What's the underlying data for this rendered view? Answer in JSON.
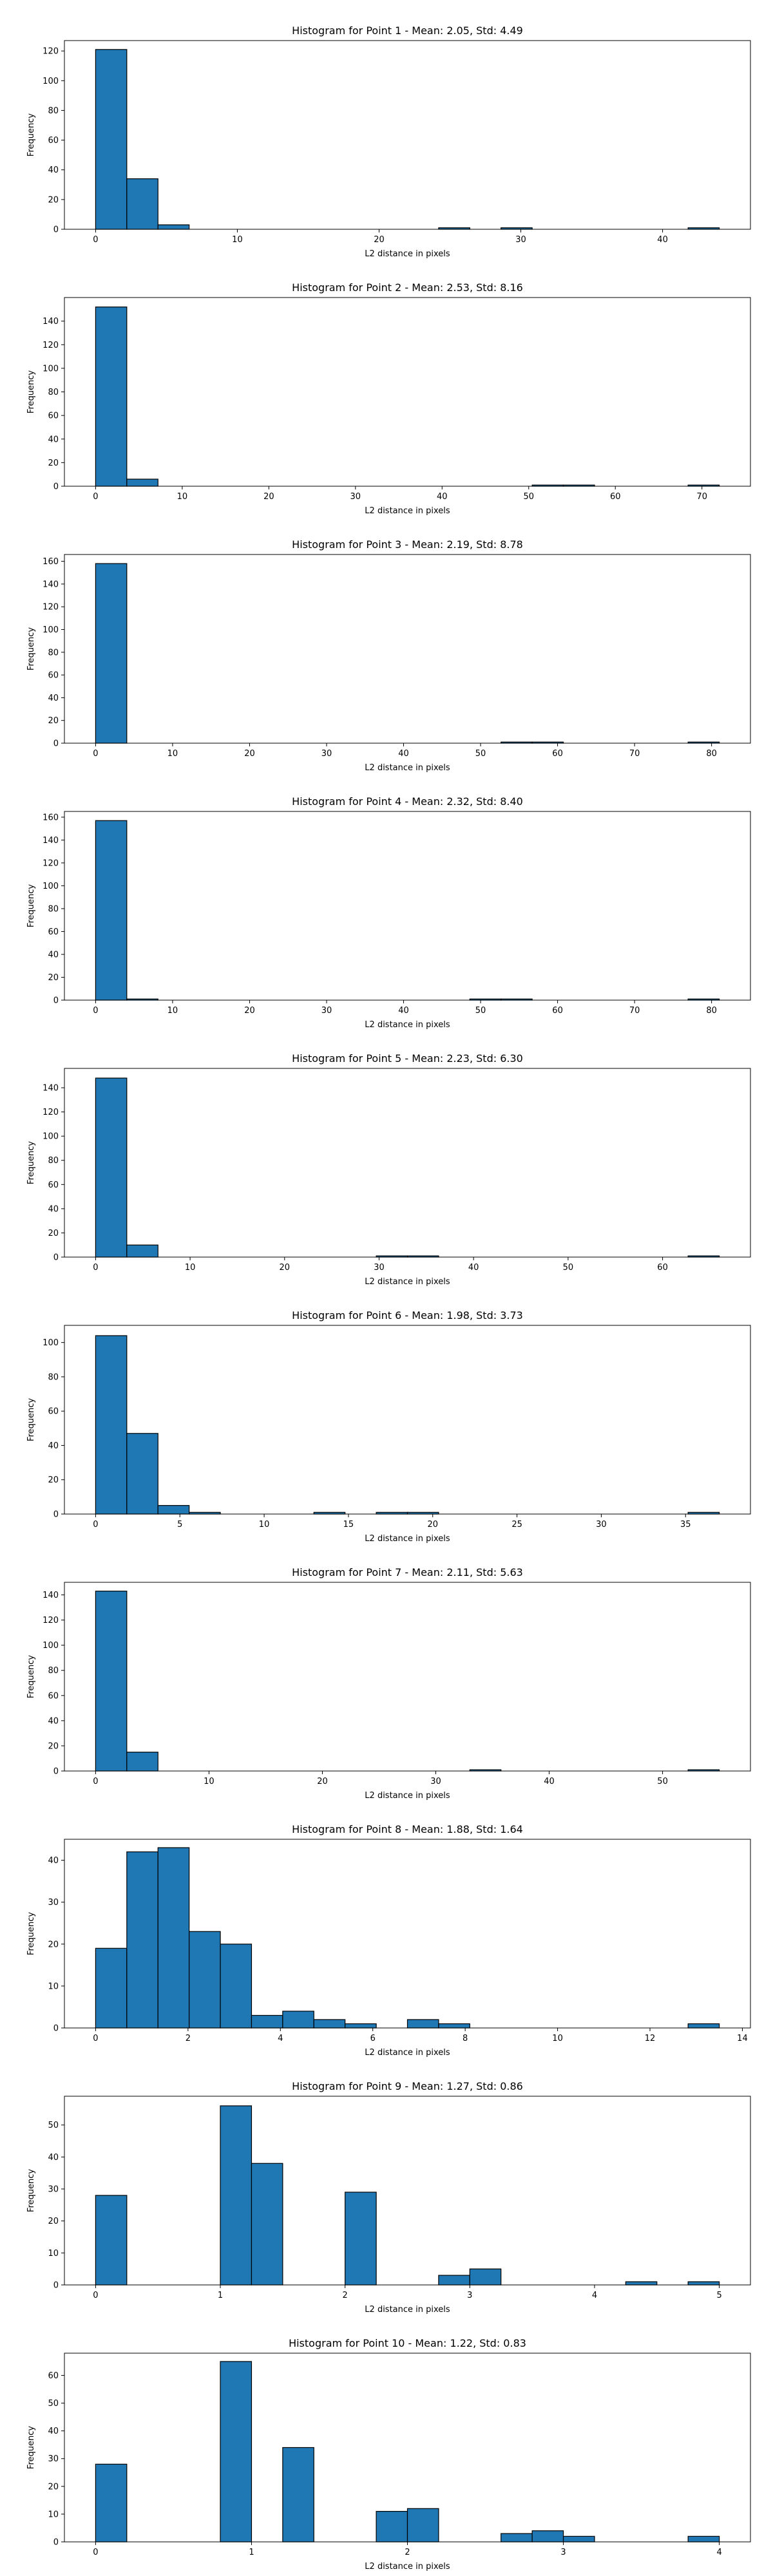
{
  "chart_data": [
    {
      "type": "bar",
      "title": "Histogram for Point 1 - Mean: 2.05, Std: 4.49",
      "xlabel": "L2 distance in pixels",
      "ylabel": "Frequency",
      "bin_start": 0,
      "bin_width": 2.2,
      "counts": [
        121,
        34,
        3,
        0,
        0,
        0,
        0,
        0,
        0,
        0,
        0,
        1,
        0,
        1,
        0,
        0,
        0,
        0,
        0,
        1
      ],
      "xlim": [
        -2.2,
        46.2
      ],
      "ylim": [
        0,
        127
      ],
      "xticks": [
        0,
        10,
        20,
        30,
        40
      ],
      "yticks": [
        0,
        20,
        40,
        60,
        80,
        100,
        120
      ]
    },
    {
      "type": "bar",
      "title": "Histogram for Point 2 - Mean: 2.53, Std: 8.16",
      "xlabel": "L2 distance in pixels",
      "ylabel": "Frequency",
      "bin_start": 0,
      "bin_width": 3.6,
      "counts": [
        152,
        6,
        0,
        0,
        0,
        0,
        0,
        0,
        0,
        0,
        0,
        0,
        0,
        0,
        1,
        1,
        0,
        0,
        0,
        1
      ],
      "xlim": [
        -3.6,
        75.6
      ],
      "ylim": [
        0,
        160
      ],
      "xticks": [
        0,
        10,
        20,
        30,
        40,
        50,
        60,
        70
      ],
      "yticks": [
        0,
        20,
        40,
        60,
        80,
        100,
        120,
        140
      ]
    },
    {
      "type": "bar",
      "title": "Histogram for Point 3 - Mean: 2.19, Std: 8.78",
      "xlabel": "L2 distance in pixels",
      "ylabel": "Frequency",
      "bin_start": 0,
      "bin_width": 4.05,
      "counts": [
        158,
        0,
        0,
        0,
        0,
        0,
        0,
        0,
        0,
        0,
        0,
        0,
        0,
        1,
        1,
        0,
        0,
        0,
        0,
        1
      ],
      "xlim": [
        -4.05,
        85.05
      ],
      "ylim": [
        0,
        166
      ],
      "xticks": [
        0,
        10,
        20,
        30,
        40,
        50,
        60,
        70,
        80
      ],
      "yticks": [
        0,
        20,
        40,
        60,
        80,
        100,
        120,
        140,
        160
      ]
    },
    {
      "type": "bar",
      "title": "Histogram for Point 4 - Mean: 2.32, Std: 8.40",
      "xlabel": "L2 distance in pixels",
      "ylabel": "Frequency",
      "bin_start": 0,
      "bin_width": 4.05,
      "counts": [
        157,
        1,
        0,
        0,
        0,
        0,
        0,
        0,
        0,
        0,
        0,
        0,
        1,
        1,
        0,
        0,
        0,
        0,
        0,
        1
      ],
      "xlim": [
        -4.05,
        85.05
      ],
      "ylim": [
        0,
        165
      ],
      "xticks": [
        0,
        10,
        20,
        30,
        40,
        50,
        60,
        70,
        80
      ],
      "yticks": [
        0,
        20,
        40,
        60,
        80,
        100,
        120,
        140,
        160
      ]
    },
    {
      "type": "bar",
      "title": "Histogram for Point 5 - Mean: 2.23, Std: 6.30",
      "xlabel": "L2 distance in pixels",
      "ylabel": "Frequency",
      "bin_start": 0,
      "bin_width": 3.3,
      "counts": [
        148,
        10,
        0,
        0,
        0,
        0,
        0,
        0,
        0,
        1,
        1,
        0,
        0,
        0,
        0,
        0,
        0,
        0,
        0,
        1
      ],
      "xlim": [
        -3.3,
        69.3
      ],
      "ylim": [
        0,
        156
      ],
      "xticks": [
        0,
        10,
        20,
        30,
        40,
        50,
        60
      ],
      "yticks": [
        0,
        20,
        40,
        60,
        80,
        100,
        120,
        140
      ]
    },
    {
      "type": "bar",
      "title": "Histogram for Point 6 - Mean: 1.98, Std: 3.73",
      "xlabel": "L2 distance in pixels",
      "ylabel": "Frequency",
      "bin_start": 0,
      "bin_width": 1.85,
      "counts": [
        104,
        47,
        5,
        1,
        0,
        0,
        0,
        1,
        0,
        1,
        1,
        0,
        0,
        0,
        0,
        0,
        0,
        0,
        0,
        1
      ],
      "xlim": [
        -1.85,
        38.85
      ],
      "ylim": [
        0,
        110
      ],
      "xticks": [
        0,
        5,
        10,
        15,
        20,
        25,
        30,
        35
      ],
      "yticks": [
        0,
        20,
        40,
        60,
        80,
        100
      ]
    },
    {
      "type": "bar",
      "title": "Histogram for Point 7 - Mean: 2.11, Std: 5.63",
      "xlabel": "L2 distance in pixels",
      "ylabel": "Frequency",
      "bin_start": 0,
      "bin_width": 2.75,
      "counts": [
        143,
        15,
        0,
        0,
        0,
        0,
        0,
        0,
        0,
        0,
        0,
        0,
        1,
        0,
        0,
        0,
        0,
        0,
        0,
        1
      ],
      "xlim": [
        -2.75,
        57.75
      ],
      "ylim": [
        0,
        150
      ],
      "xticks": [
        0,
        10,
        20,
        30,
        40,
        50
      ],
      "yticks": [
        0,
        20,
        40,
        60,
        80,
        100,
        120,
        140
      ]
    },
    {
      "type": "bar",
      "title": "Histogram for Point 8 - Mean: 1.88, Std: 1.64",
      "xlabel": "L2 distance in pixels",
      "ylabel": "Frequency",
      "bin_start": 0,
      "bin_width": 0.675,
      "counts": [
        19,
        42,
        43,
        23,
        20,
        3,
        4,
        2,
        1,
        0,
        2,
        1,
        0,
        0,
        0,
        0,
        0,
        0,
        0,
        1
      ],
      "xlim": [
        -0.675,
        14.175
      ],
      "ylim": [
        0,
        45
      ],
      "xticks": [
        0,
        2,
        4,
        6,
        8,
        10,
        12,
        14
      ],
      "yticks": [
        0,
        10,
        20,
        30,
        40
      ]
    },
    {
      "type": "bar",
      "title": "Histogram for Point 9 - Mean: 1.27, Std: 0.86",
      "xlabel": "L2 distance in pixels",
      "ylabel": "Frequency",
      "bin_start": 0,
      "bin_width": 0.25,
      "counts": [
        28,
        0,
        0,
        0,
        56,
        38,
        0,
        0,
        29,
        0,
        0,
        3,
        5,
        0,
        0,
        0,
        0,
        1,
        0,
        1
      ],
      "xlim": [
        -0.25,
        5.25
      ],
      "ylim": [
        0,
        59
      ],
      "xticks": [
        0,
        1,
        2,
        3,
        4,
        5
      ],
      "yticks": [
        0,
        10,
        20,
        30,
        40,
        50
      ]
    },
    {
      "type": "bar",
      "title": "Histogram for Point 10 - Mean: 1.22, Std: 0.83",
      "xlabel": "L2 distance in pixels",
      "ylabel": "Frequency",
      "bin_start": 0,
      "bin_width": 0.2,
      "counts": [
        28,
        0,
        0,
        0,
        65,
        0,
        34,
        0,
        0,
        11,
        12,
        0,
        0,
        3,
        4,
        2,
        0,
        0,
        0,
        2
      ],
      "xlim": [
        -0.2,
        4.2
      ],
      "ylim": [
        0,
        68
      ],
      "xticks": [
        0,
        1,
        2,
        3,
        4
      ],
      "yticks": [
        0,
        10,
        20,
        30,
        40,
        50,
        60
      ]
    }
  ],
  "style": {
    "bar_color": "#1f77b4",
    "edge_color": "#000000"
  }
}
